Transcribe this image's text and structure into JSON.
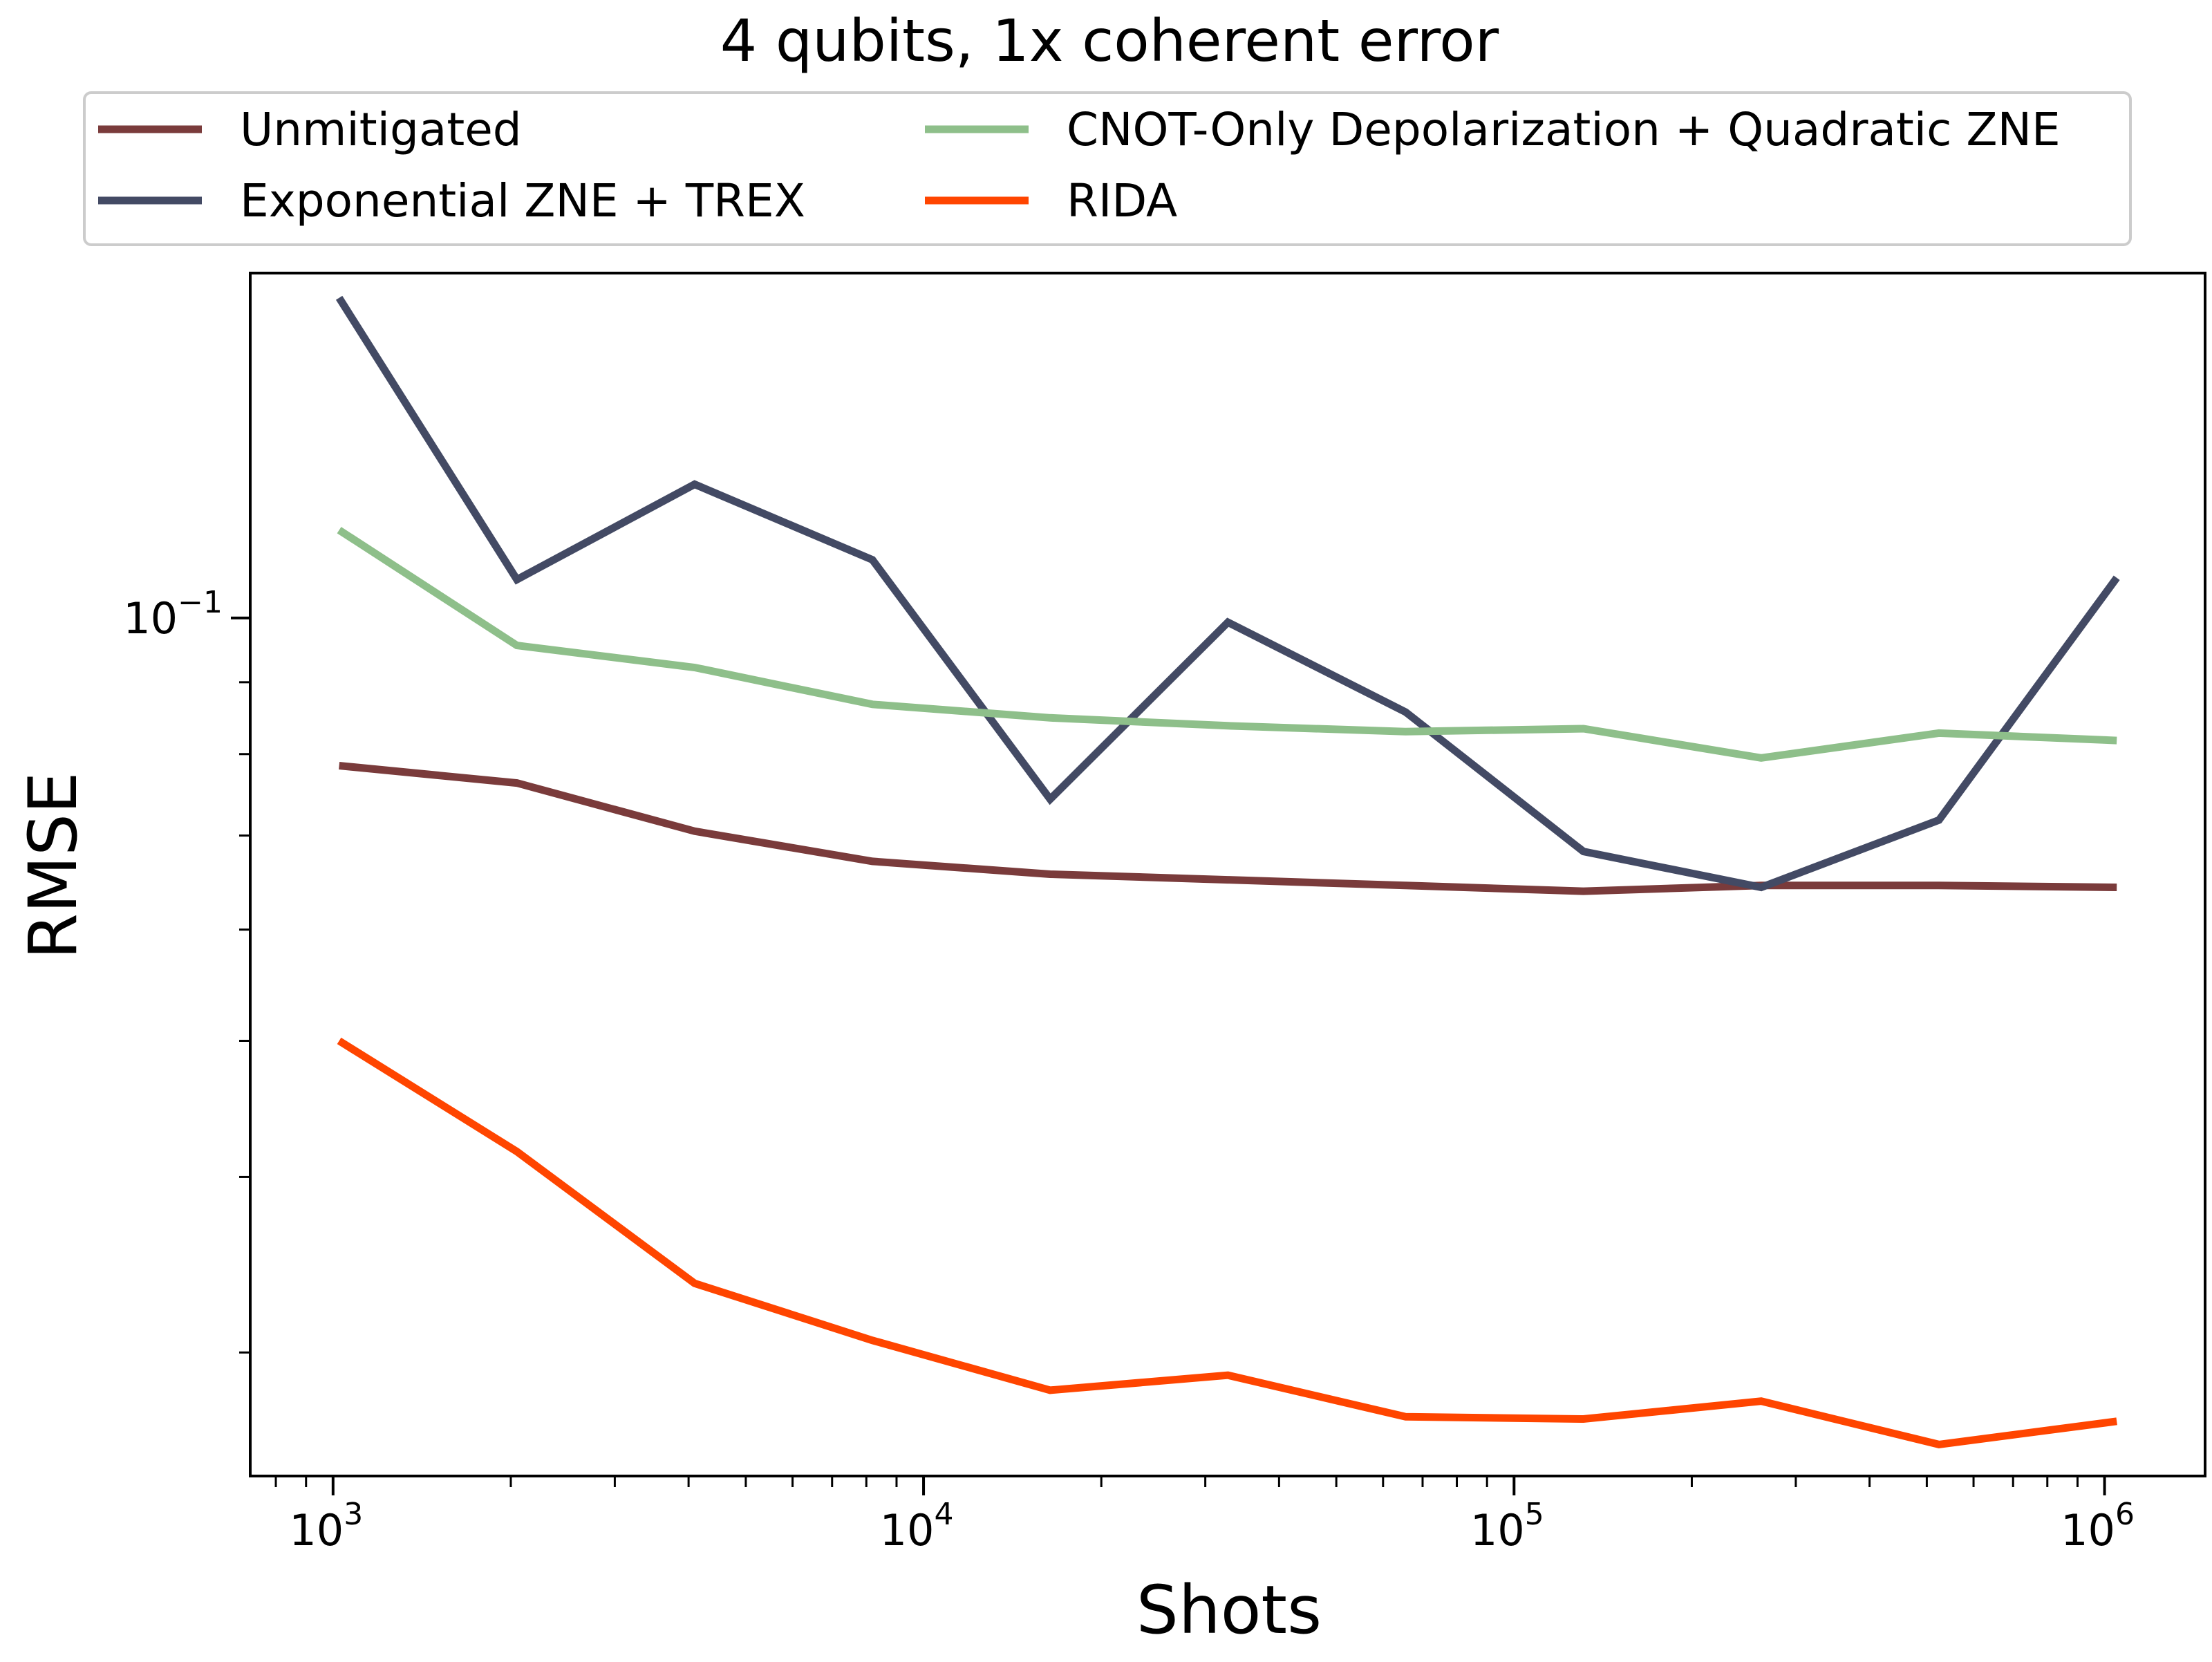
{
  "chart_data": {
    "type": "line",
    "title": "4 qubits, 1x coherent error",
    "xlabel": "Shots",
    "ylabel": "RMSE",
    "xscale": "log",
    "yscale": "log",
    "xlim": [
      724,
      1480000
    ],
    "ylim": [
      0.0245,
      0.176
    ],
    "grid": false,
    "legend_position": "top, above plot, 2 columns",
    "x_ticks": [
      {
        "value": 1000,
        "base": "10",
        "exp": "3"
      },
      {
        "value": 10000,
        "base": "10",
        "exp": "4"
      },
      {
        "value": 100000,
        "base": "10",
        "exp": "5"
      },
      {
        "value": 1000000,
        "base": "10",
        "exp": "6"
      }
    ],
    "y_ticks": [
      {
        "value": 0.1,
        "base": "10",
        "exp": "−1"
      }
    ],
    "x": [
      1024,
      2048,
      4096,
      8192,
      16384,
      32768,
      65536,
      131072,
      262144,
      524288,
      1048576
    ],
    "series": [
      {
        "name": "Unmitigated",
        "color": "#7a3b3b",
        "values": [
          0.0785,
          0.0763,
          0.0705,
          0.0671,
          0.0657,
          0.0651,
          0.0645,
          0.0639,
          0.0645,
          0.0645,
          0.0643
        ]
      },
      {
        "name": "Exponential ZNE + TREX",
        "color": "#434a64",
        "values": [
          0.169,
          0.1065,
          0.1245,
          0.11,
          0.0743,
          0.0993,
          0.0857,
          0.0682,
          0.0643,
          0.0718,
          0.1068
        ]
      },
      {
        "name": "CNOT-Only Depolarization + Quadratic ZNE",
        "color": "#8ebf8a",
        "values": [
          0.1155,
          0.0956,
          0.0922,
          0.0868,
          0.0849,
          0.0838,
          0.083,
          0.0834,
          0.0795,
          0.0828,
          0.0818
        ]
      },
      {
        "name": "RIDA",
        "color": "#ff4500",
        "values": [
          0.05,
          0.0417,
          0.0336,
          0.0306,
          0.0282,
          0.0289,
          0.027,
          0.0269,
          0.0277,
          0.0258,
          0.0268
        ]
      }
    ]
  }
}
